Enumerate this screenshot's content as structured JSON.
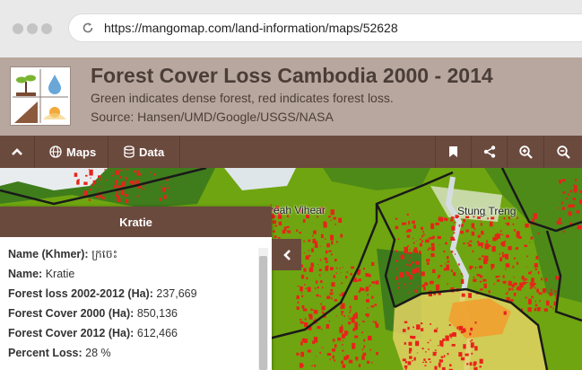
{
  "browser": {
    "url": "https://mangomap.com/land-information/maps/52628"
  },
  "header": {
    "title": "Forest Cover Loss Cambodia 2000 - 2014",
    "subtitle": "Green indicates dense forest, red indicates forest loss.",
    "source": "Source: Hansen/UMD/Google/USGS/NASA"
  },
  "toolbar": {
    "maps_label": "Maps",
    "data_label": "Data",
    "icons": [
      "chevron-up-icon",
      "globe-icon",
      "database-icon",
      "bookmark-icon",
      "share-icon",
      "zoom-in-icon",
      "zoom-out-icon"
    ]
  },
  "map": {
    "labels": {
      "preah_vihear": "reah Vihear",
      "stung_treng": "Stung Treng"
    },
    "colors": {
      "forest": "#6fa510",
      "loss": "#e8231a",
      "highlight": "#e3d263",
      "border": "#1a1a1a"
    }
  },
  "panel": {
    "title": "Kratie",
    "rows": [
      {
        "label": "Name (Khmer):",
        "value": "ក្រចេះ"
      },
      {
        "label": "Name:",
        "value": "Kratie"
      },
      {
        "label": "Forest loss 2002-2012 (Ha):",
        "value": "237,669"
      },
      {
        "label": "Forest Cover 2000 (Ha):",
        "value": "850,136"
      },
      {
        "label": "Forest Cover 2012 (Ha):",
        "value": "612,466"
      },
      {
        "label": "Percent Loss:",
        "value": "28 %"
      }
    ]
  }
}
